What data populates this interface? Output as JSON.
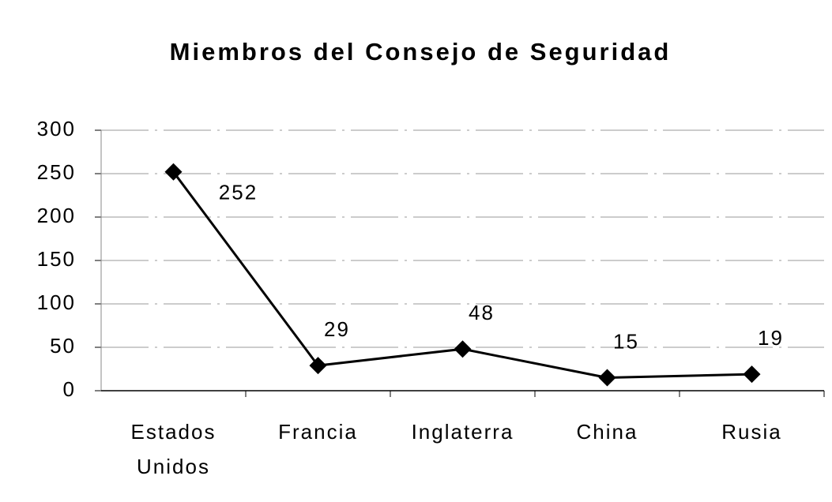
{
  "chart_data": {
    "type": "line",
    "title": "Miembros del Consejo de Seguridad",
    "categories": [
      "Estados Unidos",
      "Francia",
      "Inglaterra",
      "China",
      "Rusia"
    ],
    "values": [
      252,
      29,
      48,
      15,
      19
    ],
    "color": "#000000",
    "ylim": [
      0,
      300
    ],
    "yticks": [
      0,
      50,
      100,
      150,
      200,
      250,
      300
    ],
    "grid": true
  }
}
